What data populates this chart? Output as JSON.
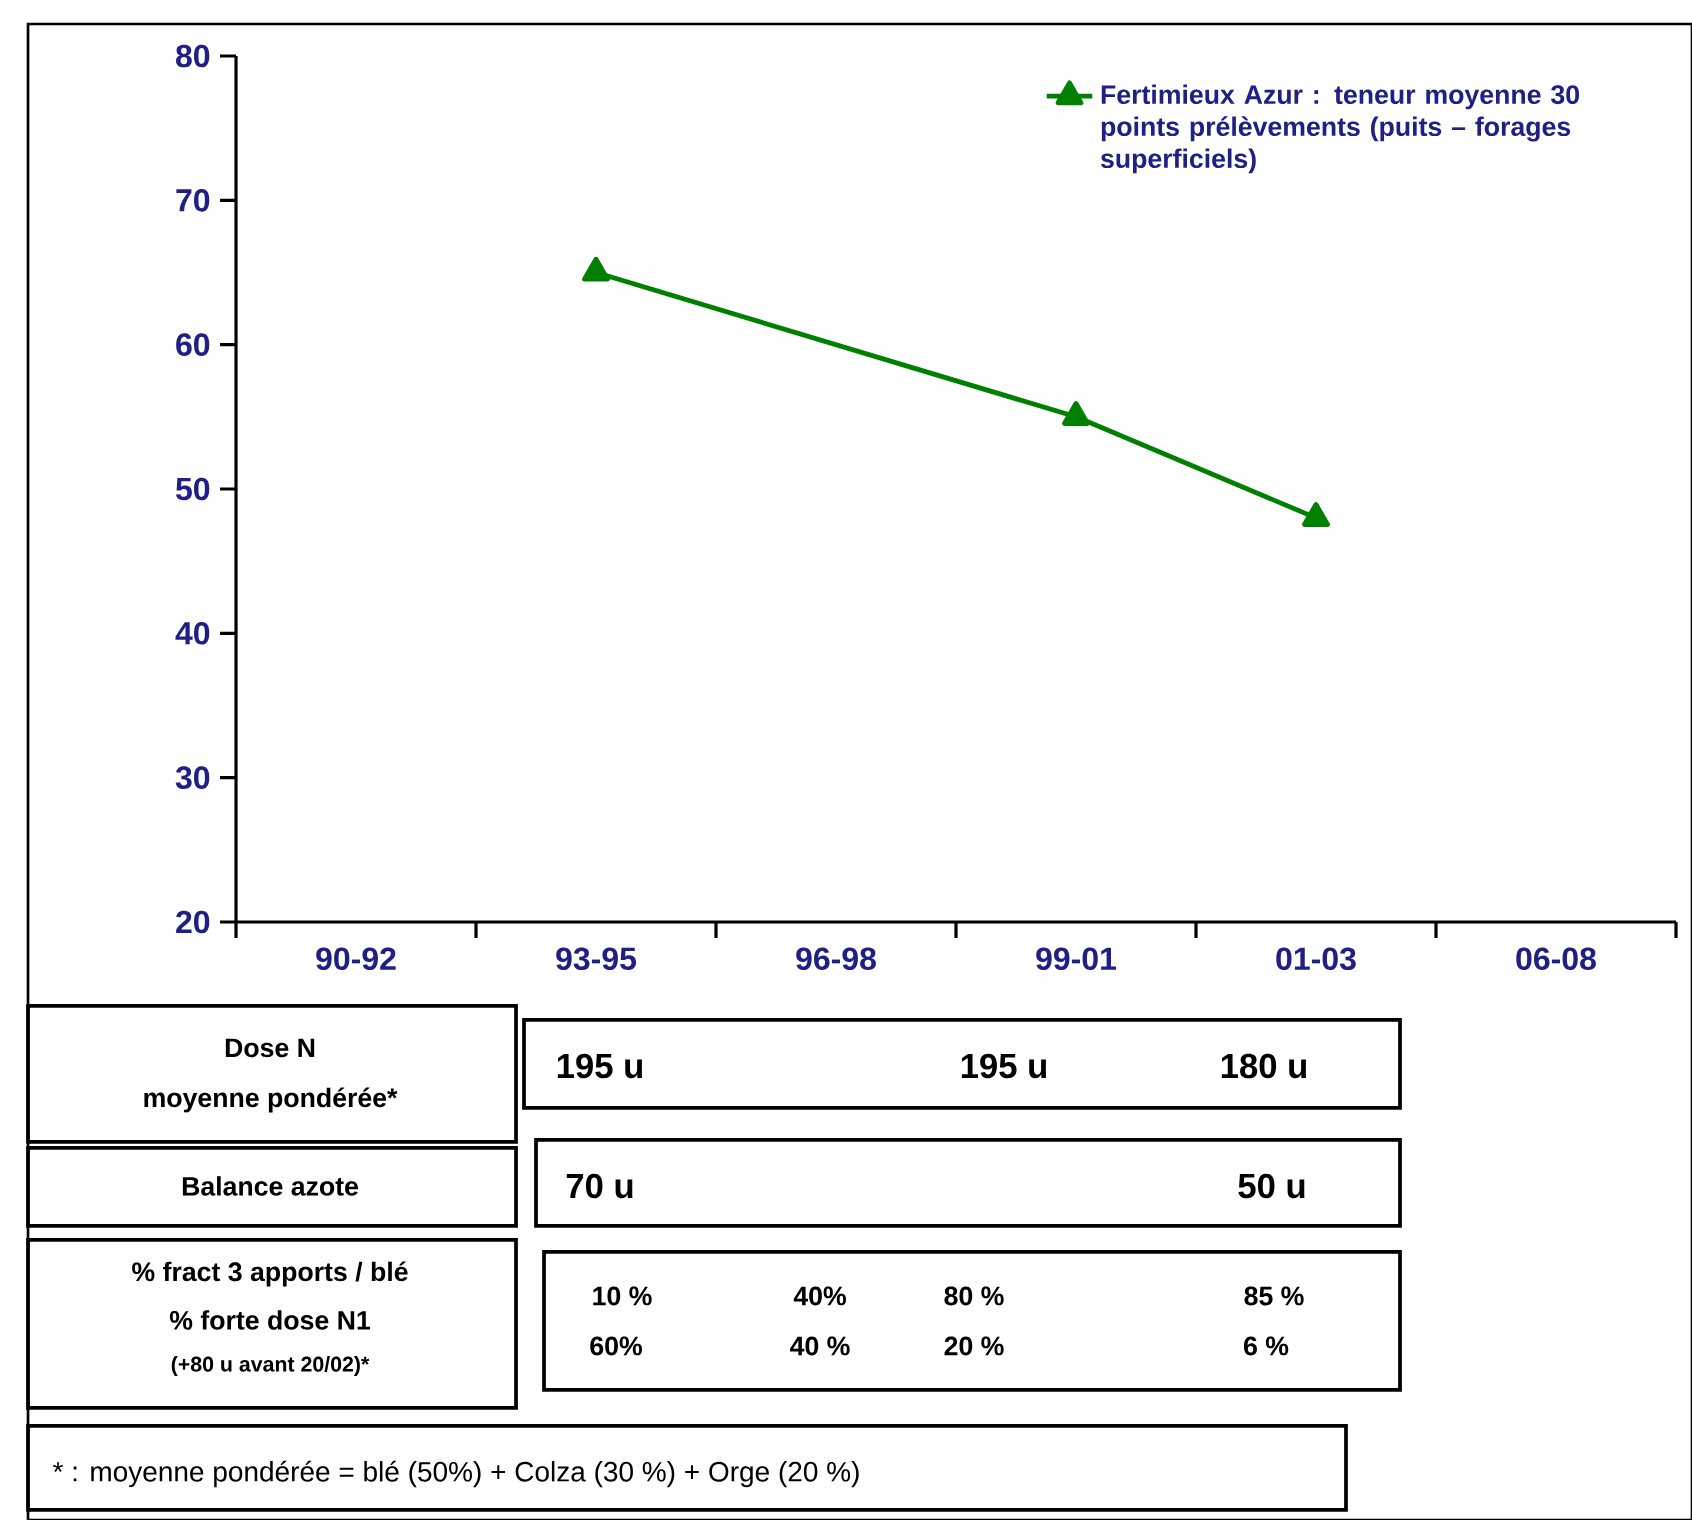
{
  "chart_data": {
    "type": "line",
    "categories": [
      "90-92",
      "93-95",
      "96-98",
      "99-01",
      "01-03",
      "06-08"
    ],
    "series": [
      {
        "name": "Fertimieux Azur : teneur moyenne 30 points prélèvements (puits – forages superficiels)",
        "color": "#008000",
        "values": [
          null,
          65,
          null,
          55,
          48,
          null
        ]
      }
    ],
    "ylim": [
      20,
      80
    ],
    "yticks": [
      20,
      30,
      40,
      50,
      60,
      70,
      80
    ],
    "legend": "top right",
    "marker": "triangle",
    "line_style": "solid",
    "annotations": [
      "Dose N",
      "moyenne pondérée*",
      "Balance azote",
      "% fract 3 apports / blé",
      "% forte dose N1",
      "(+80 u avant 20/02)*",
      "195 u",
      "195 u",
      "180 u",
      "70 u",
      "50 u",
      "10 %",
      "40%",
      "80 %",
      "85 %",
      "60%",
      "40 %",
      "20 %",
      "6 %",
      "* : moyenne pondérée = blé (50%) + Colza (30 %) + Orge (20 %)"
    ]
  }
}
